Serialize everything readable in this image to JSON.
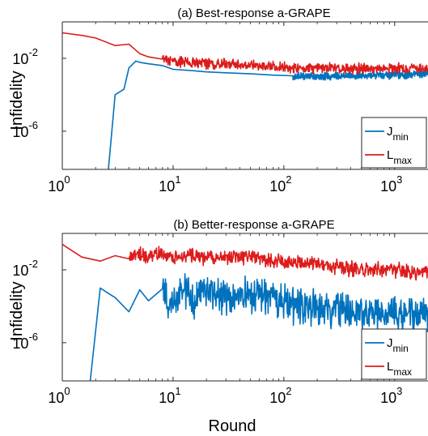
{
  "chart_data": [
    {
      "type": "line",
      "title": "(a) Best-response a-GRAPE",
      "xlabel": "",
      "ylabel": "Infidelity",
      "x_scale": "log",
      "y_scale": "log",
      "xlim": [
        1,
        2000
      ],
      "ylim": [
        8e-09,
        1
      ],
      "xticks": [
        1,
        10,
        100,
        1000
      ],
      "xtick_labels": [
        {
          "base": "10",
          "exp": "0"
        },
        {
          "base": "10",
          "exp": "1"
        },
        {
          "base": "10",
          "exp": "2"
        },
        {
          "base": "10",
          "exp": "3"
        }
      ],
      "yticks": [
        0.01,
        1e-06
      ],
      "ytick_labels": [
        {
          "base": "10",
          "exp": "-2"
        },
        {
          "base": "10",
          "exp": "-6"
        }
      ],
      "legend": {
        "placement": "bottom-right",
        "entries": [
          {
            "base": "J",
            "sub": "min"
          },
          {
            "base": "L",
            "sub": "max"
          }
        ]
      },
      "series": [
        {
          "name": "J_min",
          "color": "#0072BD",
          "points": [
            [
              2.5,
              5e-10
            ],
            [
              3.0,
              0.0001
            ],
            [
              3.6,
              0.0002
            ],
            [
              4.0,
              0.003
            ],
            [
              4.6,
              0.007
            ],
            [
              5.0,
              0.006
            ],
            [
              6,
              0.005
            ],
            [
              8,
              0.004
            ],
            [
              10,
              0.0025
            ],
            [
              15,
              0.0021
            ],
            [
              20,
              0.0018
            ],
            [
              30,
              0.0016
            ],
            [
              50,
              0.0014
            ],
            [
              80,
              0.0012
            ],
            [
              120,
              0.0011
            ],
            [
              200,
              0.001
            ],
            [
              400,
              0.0011
            ],
            [
              800,
              0.0012
            ],
            [
              1400,
              0.0013
            ],
            [
              2000,
              0.0015
            ]
          ],
          "noise_from_x": 120,
          "noise_decades": 0.25
        },
        {
          "name": "L_max",
          "color": "#DD1C1C",
          "points": [
            [
              1,
              0.25
            ],
            [
              1.5,
              0.18
            ],
            [
              2,
              0.13
            ],
            [
              3,
              0.05
            ],
            [
              4,
              0.06
            ],
            [
              5,
              0.018
            ],
            [
              6,
              0.012
            ],
            [
              8,
              0.009
            ],
            [
              10,
              0.007
            ],
            [
              15,
              0.006
            ],
            [
              20,
              0.005
            ],
            [
              30,
              0.0045
            ],
            [
              50,
              0.004
            ],
            [
              80,
              0.0035
            ],
            [
              120,
              0.003
            ],
            [
              200,
              0.003
            ],
            [
              400,
              0.0028
            ],
            [
              800,
              0.0028
            ],
            [
              1400,
              0.0027
            ],
            [
              2000,
              0.0027
            ]
          ],
          "noise_from_x": 8,
          "noise_decades": 0.35
        }
      ]
    },
    {
      "type": "line",
      "title": "(b) Better-response a-GRAPE",
      "xlabel": "Round",
      "ylabel": "Infidelity",
      "x_scale": "log",
      "y_scale": "log",
      "xlim": [
        1,
        2000
      ],
      "ylim": [
        8e-09,
        1
      ],
      "xticks": [
        1,
        10,
        100,
        1000
      ],
      "xtick_labels": [
        {
          "base": "10",
          "exp": "0"
        },
        {
          "base": "10",
          "exp": "1"
        },
        {
          "base": "10",
          "exp": "2"
        },
        {
          "base": "10",
          "exp": "3"
        }
      ],
      "yticks": [
        0.01,
        1e-06
      ],
      "ytick_labels": [
        {
          "base": "10",
          "exp": "-2"
        },
        {
          "base": "10",
          "exp": "-6"
        }
      ],
      "legend": {
        "placement": "bottom-right",
        "entries": [
          {
            "base": "J",
            "sub": "min"
          },
          {
            "base": "L",
            "sub": "max"
          }
        ]
      },
      "series": [
        {
          "name": "J_min",
          "color": "#0072BD",
          "points": [
            [
              1.7,
              5e-10
            ],
            [
              2.2,
              0.001
            ],
            [
              2.5,
              0.0006
            ],
            [
              3,
              0.0003
            ],
            [
              4,
              5e-05
            ],
            [
              5,
              0.0008
            ],
            [
              6,
              0.0002
            ],
            [
              8,
              0.0009
            ],
            [
              10,
              0.0001
            ],
            [
              12,
              0.0015
            ],
            [
              15,
              0.0002
            ],
            [
              20,
              0.0009
            ],
            [
              30,
              0.0003
            ],
            [
              50,
              0.0005
            ],
            [
              100,
              0.00015
            ],
            [
              200,
              8e-05
            ],
            [
              400,
              5e-05
            ],
            [
              800,
              4e-05
            ],
            [
              1400,
              4e-05
            ],
            [
              2000,
              4e-05
            ]
          ],
          "noise_from_x": 8,
          "noise_decades": 1.2
        },
        {
          "name": "L_max",
          "color": "#DD1C1C",
          "points": [
            [
              1,
              0.25
            ],
            [
              1.5,
              0.05
            ],
            [
              2.2,
              0.03
            ],
            [
              3,
              0.06
            ],
            [
              4,
              0.04
            ],
            [
              5,
              0.08
            ],
            [
              6,
              0.05
            ],
            [
              8,
              0.1
            ],
            [
              10,
              0.05
            ],
            [
              15,
              0.06
            ],
            [
              20,
              0.05
            ],
            [
              30,
              0.06
            ],
            [
              50,
              0.04
            ],
            [
              100,
              0.03
            ],
            [
              200,
              0.02
            ],
            [
              400,
              0.012
            ],
            [
              800,
              0.01
            ],
            [
              1400,
              0.008
            ],
            [
              2000,
              0.008
            ]
          ],
          "noise_from_x": 4,
          "noise_decades": 0.5
        }
      ]
    }
  ]
}
